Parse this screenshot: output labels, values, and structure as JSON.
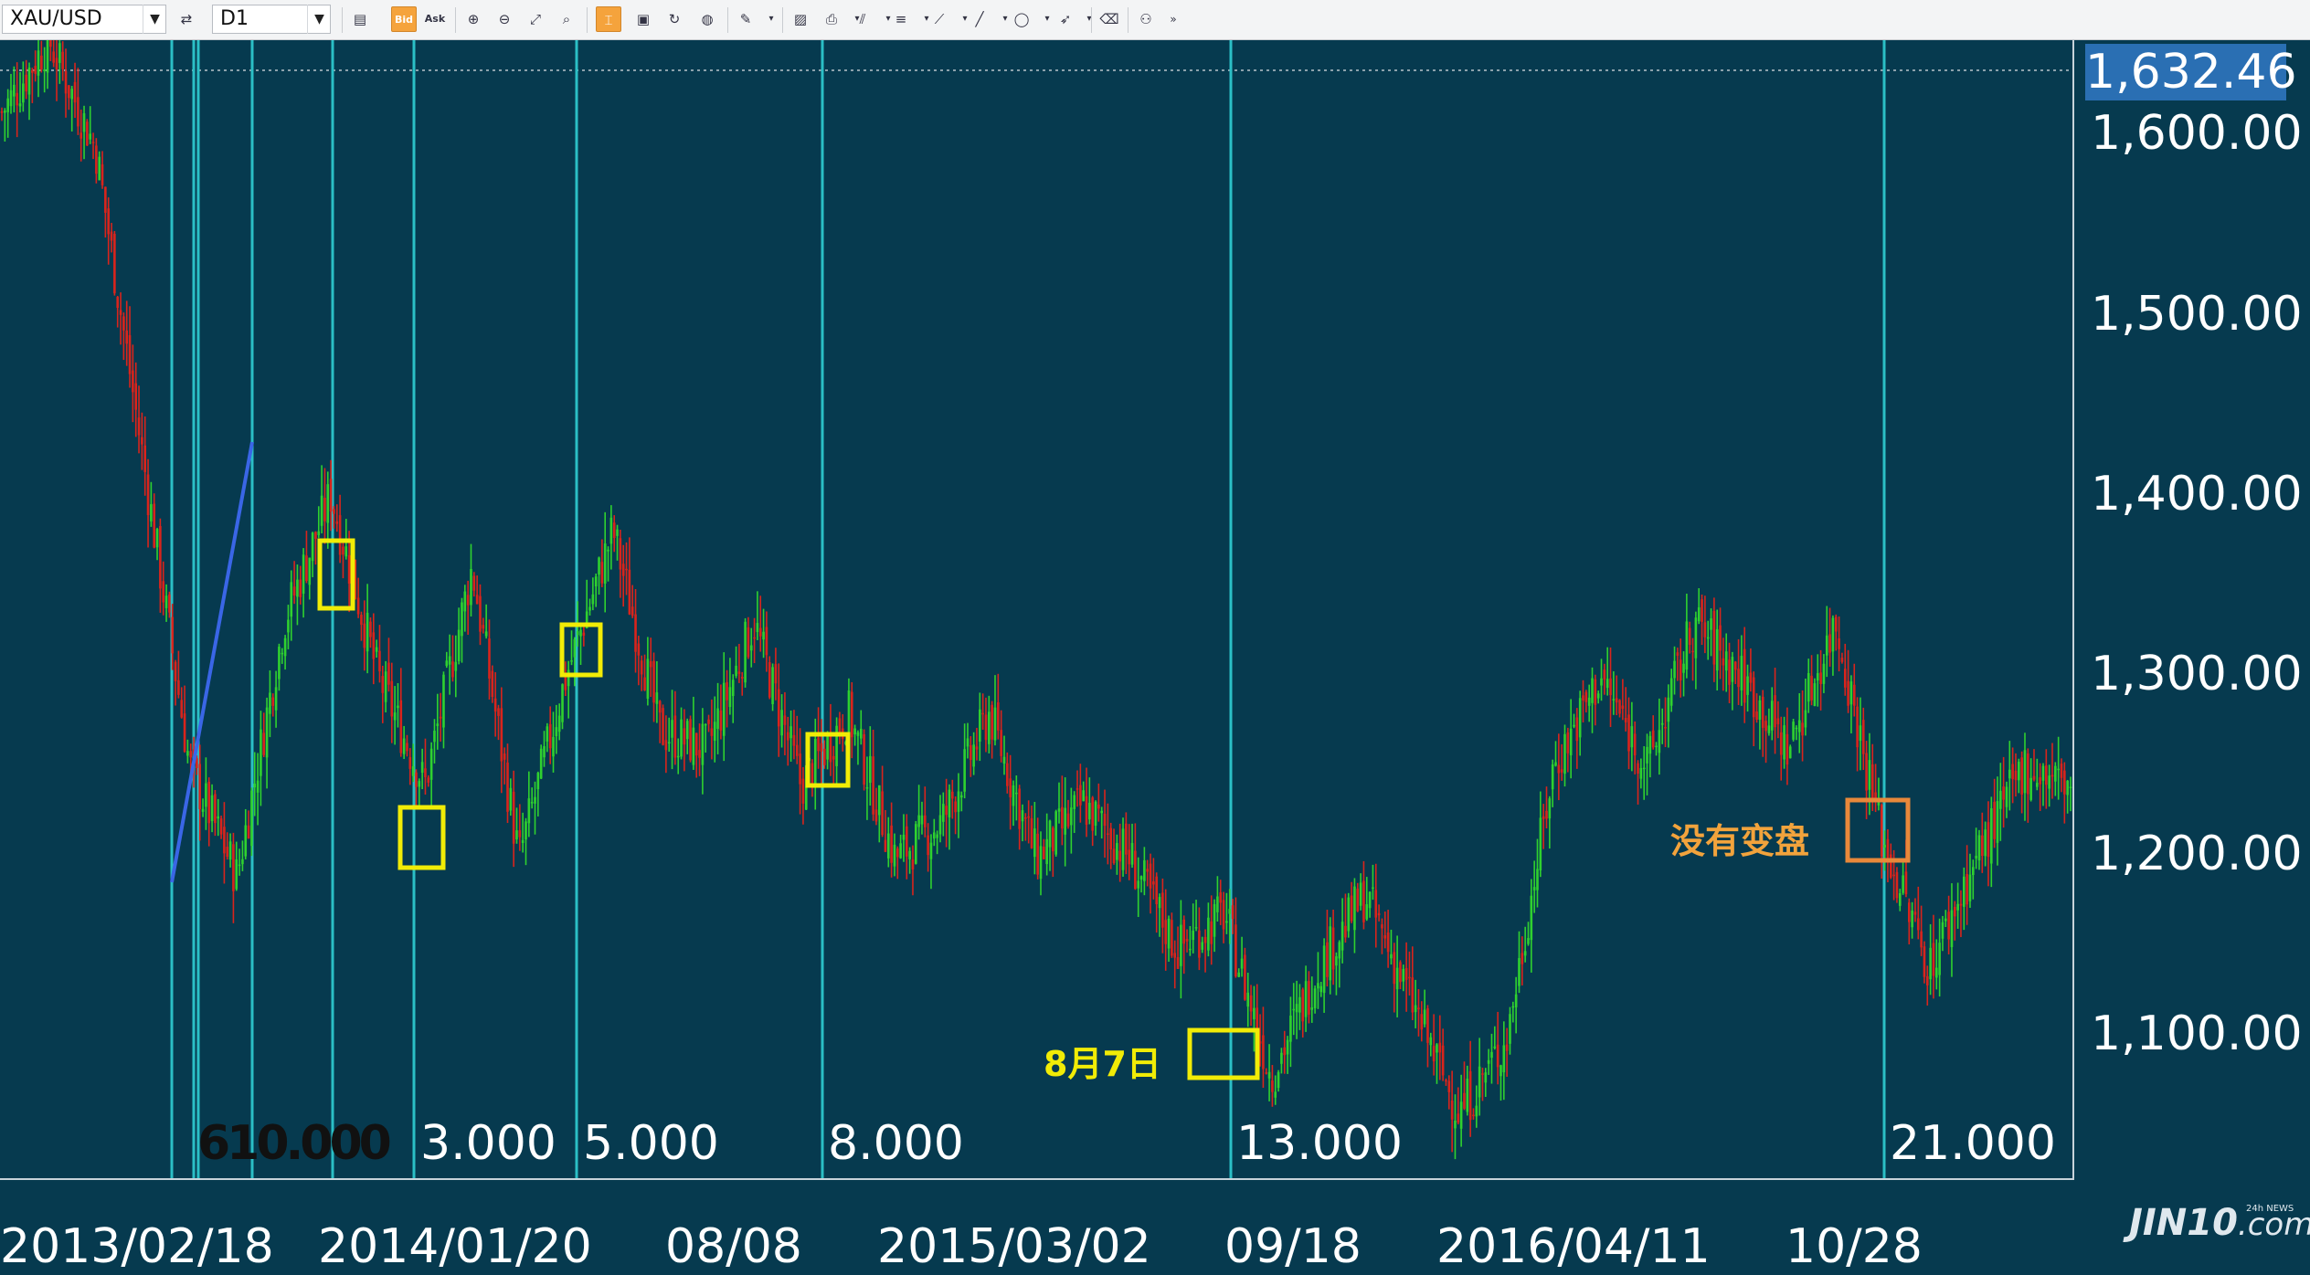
{
  "toolbar": {
    "symbol": "XAU/USD",
    "timeframe": "D1",
    "bid_label": "Bid",
    "ask_label": "Ask"
  },
  "price_tag": "1,632.46",
  "price_labels": [
    "1,600.00",
    "1,500.00",
    "1,400.00",
    "1,300.00",
    "1,200.00",
    "1,100.00"
  ],
  "date_labels": [
    "2013/02/18",
    "2014/01/20",
    "08/08",
    "2015/03/02",
    "09/18",
    "2016/04/11",
    "10/28"
  ],
  "fib_labels": [
    "610.000",
    "3.000",
    "5.000",
    "8.000",
    "13.000",
    "21.000"
  ],
  "annotations": {
    "no_change": "没有变盘",
    "aug7": "8月7日"
  },
  "logo": {
    "text": "JIN10",
    "suffix": ".com",
    "tiny": "24h NEWS"
  },
  "colors": {
    "background": "#063a4f",
    "fib_line": "#2bbfc6",
    "candle_up": "#2fd12f",
    "candle_down": "#d9241c",
    "marker_yellow": "#f1ec06",
    "marker_orange": "#e8883a",
    "trend_line": "#3a66e6",
    "price_tag": "#2a6fb3"
  },
  "chart_data": {
    "type": "line",
    "instrument": "XAU/USD",
    "timeframe": "D1",
    "y_range": [
      1040,
      1660
    ],
    "current_price": 1632.46,
    "x_tick_labels": [
      "2013/02/18",
      "2014/01/20",
      "08/08",
      "2015/03/02",
      "09/18",
      "2016/04/11",
      "10/28"
    ],
    "series": [
      {
        "values": [
          1610,
          1650,
          1590,
          1420,
          1250,
          1190,
          1330,
          1400,
          1300,
          1240,
          1360,
          1200,
          1300,
          1380,
          1270,
          1260,
          1330,
          1240,
          1280,
          1200,
          1220,
          1280,
          1200,
          1230,
          1200,
          1150,
          1170,
          1080,
          1140,
          1180,
          1120,
          1060,
          1100,
          1250,
          1300,
          1250,
          1330,
          1300,
          1260,
          1330,
          1210,
          1140,
          1200,
          1250,
          1240
        ]
      }
    ]
  }
}
